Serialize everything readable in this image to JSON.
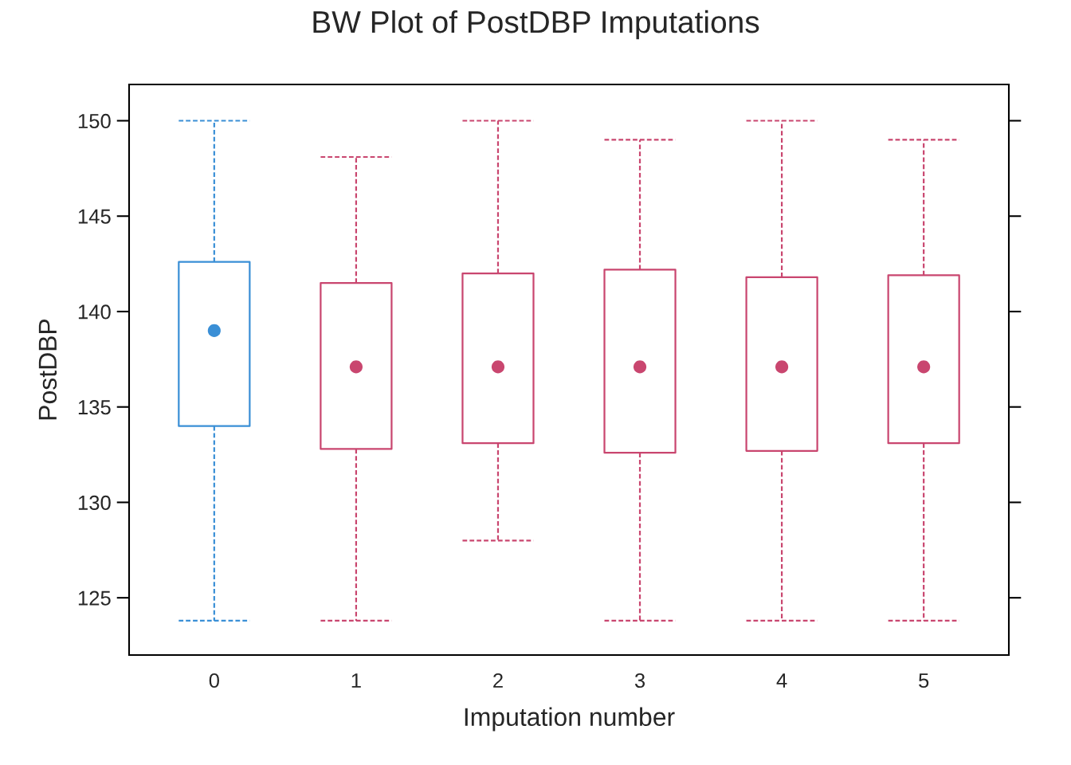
{
  "chart_data": {
    "type": "box",
    "title": "BW Plot of PostDBP Imputations",
    "xlabel": "Imputation number",
    "ylabel": "PostDBP",
    "categories": [
      "0",
      "1",
      "2",
      "3",
      "4",
      "5"
    ],
    "boxes": [
      {
        "low": 123.8,
        "q1": 134.0,
        "median": 139.0,
        "q3": 142.6,
        "high": 150.0
      },
      {
        "low": 123.8,
        "q1": 132.8,
        "median": 137.1,
        "q3": 141.5,
        "high": 148.1
      },
      {
        "low": 128.0,
        "q1": 133.1,
        "median": 137.1,
        "q3": 142.0,
        "high": 150.0
      },
      {
        "low": 123.8,
        "q1": 132.6,
        "median": 137.1,
        "q3": 142.2,
        "high": 149.0
      },
      {
        "low": 123.8,
        "q1": 132.7,
        "median": 137.1,
        "q3": 141.8,
        "high": 150.0
      },
      {
        "low": 123.8,
        "q1": 133.1,
        "median": 137.1,
        "q3": 141.9,
        "high": 149.0
      }
    ],
    "colors": [
      "#3a8fd6",
      "#c9466f",
      "#c9466f",
      "#c9466f",
      "#c9466f",
      "#c9466f"
    ],
    "ylim": [
      122,
      151.9
    ],
    "yticks": [
      125,
      130,
      135,
      140,
      145,
      150
    ],
    "marker": "circle",
    "line_style": "dashed"
  }
}
